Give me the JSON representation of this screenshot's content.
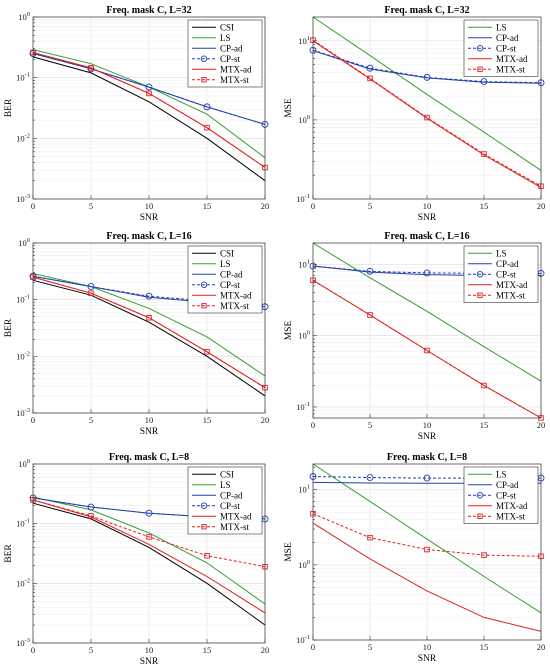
{
  "chart_data": [
    {
      "type": "line",
      "title": "Freq. mask C, L=32",
      "xlabel": "SNR",
      "ylabel": "BER",
      "xlim": [
        0,
        20
      ],
      "ylim": [
        0.001,
        1
      ],
      "yscale": "log",
      "xticks": [
        "0",
        "5",
        "10",
        "15",
        "20"
      ],
      "yticks": [
        "10^-3",
        "10^-2",
        "10^-1",
        "10^0"
      ],
      "grid": true,
      "legend_position": "top-right",
      "x": [
        0,
        5,
        10,
        15,
        20
      ],
      "series": [
        {
          "name": "CSI",
          "color": "#000000",
          "dash": "solid",
          "marker": "none",
          "values": [
            0.22,
            0.12,
            0.04,
            0.01,
            0.002
          ]
        },
        {
          "name": "LS",
          "color": "#33a02c",
          "dash": "solid",
          "marker": "none",
          "values": [
            0.29,
            0.17,
            0.07,
            0.025,
            0.0048
          ]
        },
        {
          "name": "CP-ad",
          "color": "#2040b0",
          "dash": "solid",
          "marker": "none",
          "values": [
            0.25,
            0.14,
            0.07,
            0.033,
            0.017
          ]
        },
        {
          "name": "CP-st",
          "color": "#2040b0",
          "dash": "dashed",
          "marker": "circle",
          "values": [
            0.25,
            0.14,
            0.07,
            0.033,
            0.017
          ]
        },
        {
          "name": "MTX-ad",
          "color": "#e02020",
          "dash": "solid",
          "marker": "none",
          "values": [
            0.26,
            0.145,
            0.055,
            0.015,
            0.0033
          ]
        },
        {
          "name": "MTX-st",
          "color": "#e02020",
          "dash": "dashed",
          "marker": "square",
          "values": [
            0.26,
            0.145,
            0.055,
            0.015,
            0.0033
          ]
        }
      ]
    },
    {
      "type": "line",
      "title": "Freq. mask C, L=32",
      "xlabel": "SNR",
      "ylabel": "MSE",
      "xlim": [
        0,
        20
      ],
      "ylim": [
        0.1,
        20
      ],
      "yscale": "log",
      "xticks": [
        "0",
        "5",
        "10",
        "15",
        "20"
      ],
      "yticks": [
        "10^-1",
        "10^0",
        "10^1"
      ],
      "grid": true,
      "legend_position": "top-right",
      "x": [
        0,
        5,
        10,
        15,
        20
      ],
      "series": [
        {
          "name": "LS",
          "color": "#33a02c",
          "dash": "solid",
          "marker": "none",
          "values": [
            20,
            6.5,
            2.1,
            0.7,
            0.23
          ]
        },
        {
          "name": "CP-ad",
          "color": "#2040b0",
          "dash": "solid",
          "marker": "none",
          "values": [
            7.5,
            4.4,
            3.4,
            3.0,
            2.9
          ]
        },
        {
          "name": "CP-st",
          "color": "#2040b0",
          "dash": "dashed",
          "marker": "circle",
          "values": [
            7.6,
            4.5,
            3.45,
            3.05,
            2.95
          ]
        },
        {
          "name": "MTX-ad",
          "color": "#e02020",
          "dash": "solid",
          "marker": "none",
          "values": [
            10,
            3.3,
            1.05,
            0.36,
            0.14
          ]
        },
        {
          "name": "MTX-st",
          "color": "#e02020",
          "dash": "dashed",
          "marker": "square",
          "values": [
            10.2,
            3.35,
            1.07,
            0.37,
            0.145
          ]
        }
      ]
    },
    {
      "type": "line",
      "title": "Freq. mask C, L=16",
      "xlabel": "SNR",
      "ylabel": "BER",
      "xlim": [
        0,
        20
      ],
      "ylim": [
        0.001,
        1
      ],
      "yscale": "log",
      "xticks": [
        "0",
        "5",
        "10",
        "15",
        "20"
      ],
      "yticks": [
        "10^-3",
        "10^-2",
        "10^-1",
        "10^0"
      ],
      "grid": true,
      "legend_position": "top-right",
      "x": [
        0,
        5,
        10,
        15,
        20
      ],
      "series": [
        {
          "name": "CSI",
          "color": "#000000",
          "dash": "solid",
          "marker": "none",
          "values": [
            0.22,
            0.12,
            0.04,
            0.01,
            0.002
          ]
        },
        {
          "name": "LS",
          "color": "#33a02c",
          "dash": "solid",
          "marker": "none",
          "values": [
            0.29,
            0.17,
            0.07,
            0.022,
            0.0045
          ]
        },
        {
          "name": "CP-ad",
          "color": "#2040b0",
          "dash": "solid",
          "marker": "none",
          "values": [
            0.26,
            0.17,
            0.11,
            0.09,
            0.075
          ]
        },
        {
          "name": "CP-st",
          "color": "#2040b0",
          "dash": "dashed",
          "marker": "circle",
          "values": [
            0.26,
            0.17,
            0.115,
            0.095,
            0.075
          ]
        },
        {
          "name": "MTX-ad",
          "color": "#e02020",
          "dash": "solid",
          "marker": "none",
          "values": [
            0.25,
            0.13,
            0.048,
            0.012,
            0.0028
          ]
        },
        {
          "name": "MTX-st",
          "color": "#e02020",
          "dash": "dashed",
          "marker": "square",
          "values": [
            0.25,
            0.13,
            0.048,
            0.012,
            0.0028
          ]
        }
      ]
    },
    {
      "type": "line",
      "title": "Freq. mask C, L=16",
      "xlabel": "SNR",
      "ylabel": "MSE",
      "xlim": [
        0,
        20
      ],
      "ylim": [
        0.07,
        20
      ],
      "yscale": "log",
      "xticks": [
        "0",
        "5",
        "10",
        "15",
        "20"
      ],
      "yticks": [
        "10^-1",
        "10^0",
        "10^1"
      ],
      "grid": true,
      "legend_position": "top-right",
      "x": [
        0,
        5,
        10,
        15,
        20
      ],
      "series": [
        {
          "name": "LS",
          "color": "#33a02c",
          "dash": "solid",
          "marker": "none",
          "values": [
            20,
            6.5,
            2.2,
            0.7,
            0.23
          ]
        },
        {
          "name": "CP-ad",
          "color": "#2040b0",
          "dash": "solid",
          "marker": "none",
          "values": [
            9.5,
            7.8,
            7.2,
            7.0,
            7.0
          ]
        },
        {
          "name": "CP-st",
          "color": "#2040b0",
          "dash": "dashed",
          "marker": "circle",
          "values": [
            9.5,
            8.0,
            7.6,
            7.5,
            7.5
          ]
        },
        {
          "name": "MTX-ad",
          "color": "#e02020",
          "dash": "solid",
          "marker": "none",
          "values": [
            6.0,
            1.95,
            0.62,
            0.2,
            0.07
          ]
        },
        {
          "name": "MTX-st",
          "color": "#e02020",
          "dash": "dashed",
          "marker": "square",
          "values": [
            6.0,
            1.95,
            0.62,
            0.2,
            0.07
          ]
        }
      ]
    },
    {
      "type": "line",
      "title": "Freq. mask C, L=8",
      "xlabel": "SNR",
      "ylabel": "BER",
      "xlim": [
        0,
        20
      ],
      "ylim": [
        0.001,
        1
      ],
      "yscale": "log",
      "xticks": [
        "0",
        "5",
        "10",
        "15",
        "20"
      ],
      "yticks": [
        "10^-3",
        "10^-2",
        "10^-1",
        "10^0"
      ],
      "grid": true,
      "legend_position": "top-right",
      "x": [
        0,
        5,
        10,
        15,
        20
      ],
      "series": [
        {
          "name": "CSI",
          "color": "#000000",
          "dash": "solid",
          "marker": "none",
          "values": [
            0.22,
            0.12,
            0.04,
            0.01,
            0.002
          ]
        },
        {
          "name": "LS",
          "color": "#33a02c",
          "dash": "solid",
          "marker": "none",
          "values": [
            0.28,
            0.17,
            0.07,
            0.022,
            0.0045
          ]
        },
        {
          "name": "CP-ad",
          "color": "#2040b0",
          "dash": "solid",
          "marker": "none",
          "values": [
            0.27,
            0.19,
            0.15,
            0.13,
            0.12
          ]
        },
        {
          "name": "CP-st",
          "color": "#2040b0",
          "dash": "dashed",
          "marker": "circle",
          "values": [
            0.27,
            0.19,
            0.15,
            0.13,
            0.12
          ]
        },
        {
          "name": "MTX-ad",
          "color": "#e02020",
          "dash": "solid",
          "marker": "none",
          "values": [
            0.25,
            0.13,
            0.045,
            0.013,
            0.0032
          ]
        },
        {
          "name": "MTX-st",
          "color": "#e02020",
          "dash": "dashed",
          "marker": "square",
          "values": [
            0.25,
            0.135,
            0.06,
            0.029,
            0.019
          ]
        }
      ]
    },
    {
      "type": "line",
      "title": "Freq. mask C, L=8",
      "xlabel": "SNR",
      "ylabel": "MSE",
      "xlim": [
        0,
        20
      ],
      "ylim": [
        0.1,
        22
      ],
      "yscale": "log",
      "xticks": [
        "0",
        "5",
        "10",
        "15",
        "20"
      ],
      "yticks": [
        "10^-1",
        "10^0",
        "10^1"
      ],
      "grid": true,
      "legend_position": "top-right",
      "x": [
        0,
        5,
        10,
        15,
        20
      ],
      "series": [
        {
          "name": "LS",
          "color": "#33a02c",
          "dash": "solid",
          "marker": "none",
          "values": [
            22,
            7,
            2.2,
            0.7,
            0.23
          ]
        },
        {
          "name": "CP-ad",
          "color": "#2040b0",
          "dash": "solid",
          "marker": "none",
          "values": [
            12.5,
            12.3,
            12.2,
            12.2,
            12.2
          ]
        },
        {
          "name": "CP-st",
          "color": "#2040b0",
          "dash": "dashed",
          "marker": "circle",
          "values": [
            15,
            14.5,
            14.3,
            14.3,
            14.3
          ]
        },
        {
          "name": "MTX-ad",
          "color": "#e02020",
          "dash": "solid",
          "marker": "none",
          "values": [
            3.6,
            1.2,
            0.45,
            0.2,
            0.13
          ]
        },
        {
          "name": "MTX-st",
          "color": "#e02020",
          "dash": "dashed",
          "marker": "square",
          "values": [
            4.8,
            2.3,
            1.6,
            1.35,
            1.3
          ]
        }
      ]
    }
  ]
}
